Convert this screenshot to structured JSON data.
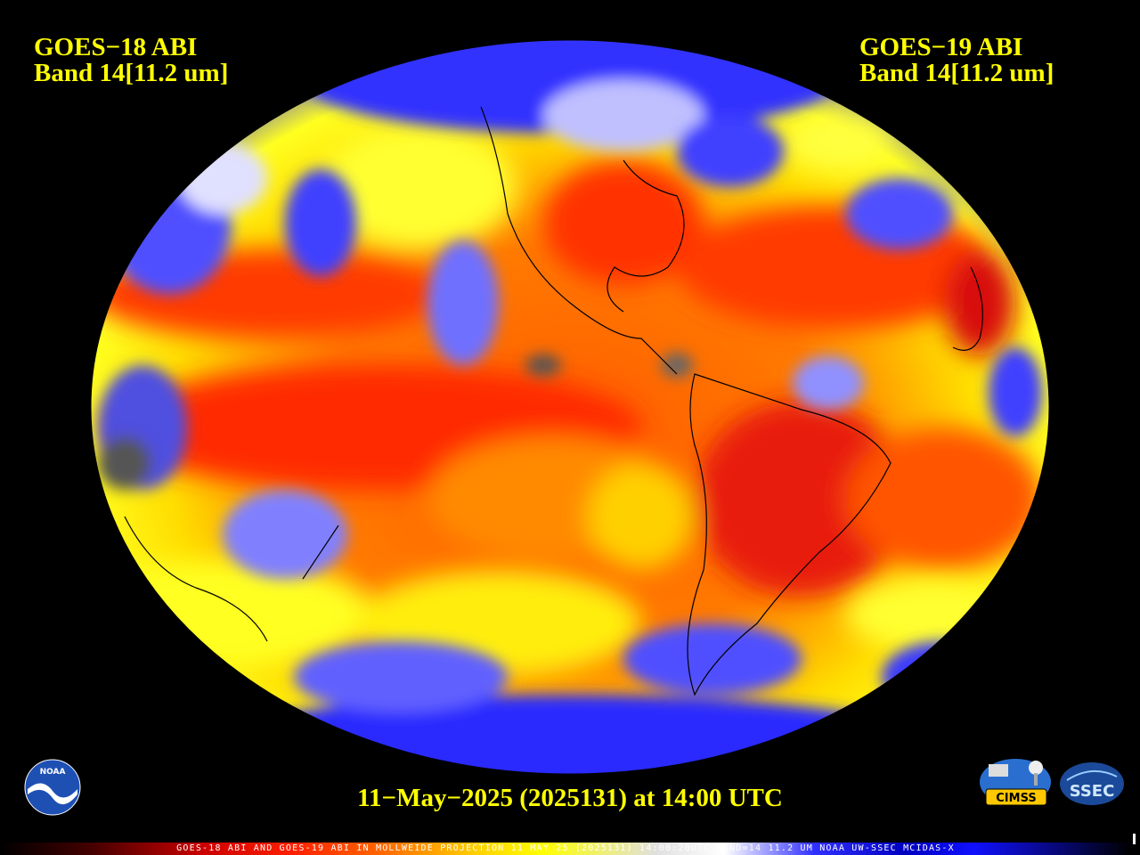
{
  "left_label": {
    "line1": "GOES−18 ABI",
    "line2": "Band 14[11.2 um]"
  },
  "right_label": {
    "line1": "GOES−19 ABI",
    "line2": "Band 14[11.2 um]"
  },
  "timestamp": "11−May−2025 (2025131) at 14:00 UTC",
  "colorbar_text": "GOES-18 ABI AND GOES-19 ABI IN MOLLWEIDE PROJECTION 11 MAY 25 (2025131) 14:00:20UTC BAND=14 11.2 UM NOAA UW-SSEC MCIDAS-X",
  "logos": {
    "noaa": "NOAA",
    "cimss": "CIMSS",
    "ssec": "SSEC"
  },
  "colors": {
    "label_yellow": "#ffff00",
    "cold_blue": "#1a1aff",
    "warm_red": "#ff2a00",
    "mid_orange": "#ff7a00",
    "cloud_white": "#ffffff"
  }
}
